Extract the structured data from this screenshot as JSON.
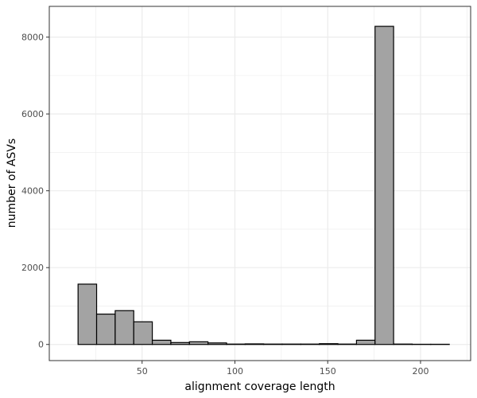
{
  "chart_data": {
    "type": "bar",
    "title": "",
    "xlabel": "alignment coverage length",
    "ylabel": "number of ASVs",
    "xlim": [
      0,
      227
    ],
    "ylim": [
      -420,
      8800
    ],
    "x_ticks": [
      50,
      100,
      150,
      200
    ],
    "y_ticks": [
      0,
      2000,
      4000,
      6000,
      8000
    ],
    "x_tick_labels": [
      "50",
      "100",
      "150",
      "200"
    ],
    "y_tick_labels": [
      "0",
      "2000",
      "4000",
      "6000",
      "8000"
    ],
    "grid": true,
    "bins": [
      {
        "x0": 15.5,
        "x1": 25.5,
        "value": 1570
      },
      {
        "x0": 25.5,
        "x1": 35.5,
        "value": 790
      },
      {
        "x0": 35.5,
        "x1": 45.5,
        "value": 880
      },
      {
        "x0": 45.5,
        "x1": 55.5,
        "value": 590
      },
      {
        "x0": 55.5,
        "x1": 65.5,
        "value": 110
      },
      {
        "x0": 65.5,
        "x1": 75.5,
        "value": 50
      },
      {
        "x0": 75.5,
        "x1": 85.5,
        "value": 70
      },
      {
        "x0": 85.5,
        "x1": 95.5,
        "value": 40
      },
      {
        "x0": 95.5,
        "x1": 105.5,
        "value": 10
      },
      {
        "x0": 105.5,
        "x1": 115.5,
        "value": 15
      },
      {
        "x0": 115.5,
        "x1": 125.5,
        "value": 10
      },
      {
        "x0": 125.5,
        "x1": 135.5,
        "value": 10
      },
      {
        "x0": 135.5,
        "x1": 145.5,
        "value": 10
      },
      {
        "x0": 145.5,
        "x1": 155.5,
        "value": 20
      },
      {
        "x0": 155.5,
        "x1": 165.5,
        "value": 10
      },
      {
        "x0": 165.5,
        "x1": 175.5,
        "value": 110
      },
      {
        "x0": 175.5,
        "x1": 185.5,
        "value": 8280
      },
      {
        "x0": 185.5,
        "x1": 195.5,
        "value": 10
      },
      {
        "x0": 195.5,
        "x1": 205.5,
        "value": 5
      },
      {
        "x0": 205.5,
        "x1": 215.5,
        "value": 5
      }
    ],
    "colors": {
      "bar_fill": "#a3a3a3",
      "bar_stroke": "#000000",
      "grid": "#ebebeb",
      "panel_border": "#333333"
    }
  }
}
